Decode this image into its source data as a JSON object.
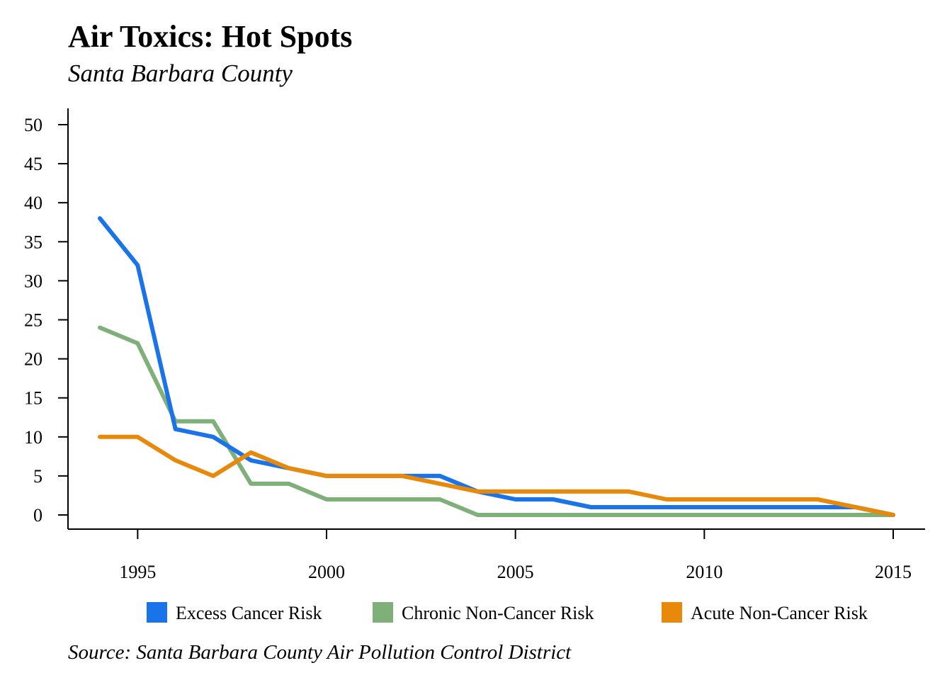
{
  "header": {
    "title": "Air Toxics: Hot Spots",
    "subtitle": "Santa Barbara County"
  },
  "footer": {
    "source": "Source: Santa Barbara County Air Pollution Control District"
  },
  "chart_data": {
    "type": "line",
    "title": "Air Toxics: Hot Spots",
    "subtitle": "Santa Barbara County",
    "xlabel": "",
    "ylabel": "",
    "xlim": [
      1994,
      2015
    ],
    "ylim": [
      0,
      50
    ],
    "x_ticks": [
      1995,
      2000,
      2005,
      2010,
      2015
    ],
    "y_ticks": [
      0,
      5,
      10,
      15,
      20,
      25,
      30,
      35,
      40,
      45,
      50
    ],
    "grid": false,
    "legend_position": "bottom",
    "x": [
      1994,
      1995,
      1996,
      1997,
      1998,
      1999,
      2000,
      2001,
      2002,
      2003,
      2004,
      2005,
      2006,
      2007,
      2008,
      2009,
      2010,
      2011,
      2012,
      2013,
      2014,
      2015
    ],
    "series": [
      {
        "name": "Excess Cancer Risk",
        "color": "#1a73e8",
        "values": [
          38,
          32,
          11,
          10,
          7,
          6,
          5,
          5,
          5,
          5,
          3,
          2,
          2,
          1,
          1,
          1,
          1,
          1,
          1,
          1,
          1,
          0
        ]
      },
      {
        "name": "Chronic Non-Cancer Risk",
        "color": "#80b07a",
        "values": [
          24,
          22,
          12,
          12,
          4,
          4,
          2,
          2,
          2,
          2,
          0,
          0,
          0,
          0,
          0,
          0,
          0,
          0,
          0,
          0,
          0,
          0
        ]
      },
      {
        "name": "Acute Non-Cancer Risk",
        "color": "#e8890c",
        "values": [
          10,
          10,
          7,
          5,
          8,
          6,
          5,
          5,
          5,
          4,
          3,
          3,
          3,
          3,
          3,
          2,
          2,
          2,
          2,
          2,
          1,
          0
        ]
      }
    ],
    "source": "Source: Santa Barbara County Air Pollution Control District"
  }
}
